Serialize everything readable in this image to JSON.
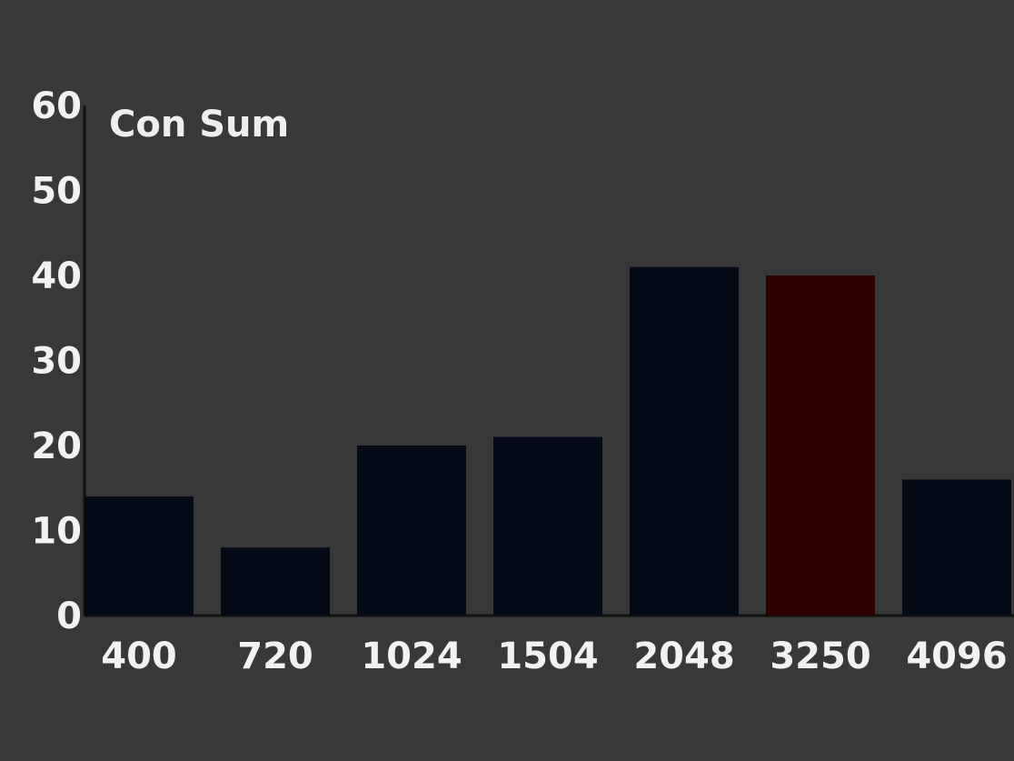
{
  "chart_data": {
    "type": "bar",
    "title": "Con Sum",
    "xlabel": "",
    "ylabel": "",
    "ylim": [
      0,
      60
    ],
    "yticks": [
      0,
      10,
      20,
      30,
      40,
      50,
      60
    ],
    "grid": false,
    "categories": [
      "400",
      "720",
      "1024",
      "1504",
      "2048",
      "3250",
      "4096"
    ],
    "values": [
      14,
      8,
      20,
      21,
      41,
      40,
      16
    ],
    "highlight_index": 5,
    "colors": {
      "bar": "#050b16",
      "highlight": "#2f0000",
      "axis": "#111111",
      "text": "#f2f2f2",
      "background": "#383838"
    }
  }
}
